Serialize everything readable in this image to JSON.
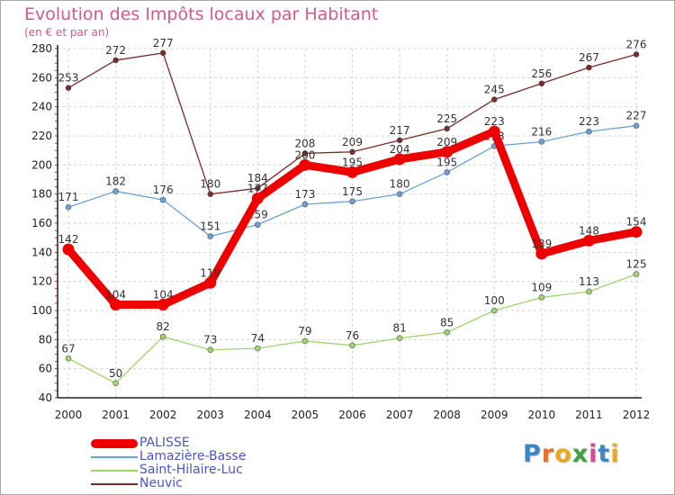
{
  "title": "Evolution des Impôts locaux par Habitant",
  "subtitle": "(en € et par an)",
  "logo": [
    "P",
    "r",
    "o",
    "x",
    "i",
    "t",
    "i"
  ],
  "logo_colors": [
    "#3d86c6",
    "#e8712a",
    "#e8a91e",
    "#3fa342",
    "#d84a8e",
    "#3d86c6",
    "#e8a91e"
  ],
  "chart_data": {
    "type": "line",
    "title": "Evolution des Impôts locaux par Habitant",
    "subtitle": "(en € et par an)",
    "xlabel": "",
    "ylabel": "",
    "x": [
      "2000",
      "2001",
      "2002",
      "2003",
      "2004",
      "2005",
      "2006",
      "2007",
      "2008",
      "2009",
      "2010",
      "2011",
      "2012"
    ],
    "ylim": [
      40,
      280
    ],
    "yticks": [
      40,
      60,
      80,
      100,
      120,
      140,
      160,
      180,
      200,
      220,
      240,
      260,
      280
    ],
    "grid": true,
    "series": [
      {
        "name": "Neuvic",
        "color": "#7a2a2a",
        "values": [
          253,
          272,
          277,
          180,
          184,
          208,
          209,
          217,
          225,
          245,
          256,
          267,
          276
        ],
        "labels": [
          "253",
          "272",
          "277",
          "180",
          "184",
          "208",
          "209",
          "217",
          "225",
          "245",
          "256",
          "267",
          "276"
        ]
      },
      {
        "name": "Lamazière-Basse",
        "color": "#6aa2d8",
        "values": [
          171,
          182,
          176,
          151,
          159,
          173,
          175,
          180,
          195,
          213,
          216,
          223,
          227
        ],
        "labels": [
          "171",
          "182",
          "176",
          "151",
          "159",
          "173",
          "175",
          "180",
          "195",
          "213",
          "216",
          "223",
          "227"
        ]
      },
      {
        "name": "Saint-Hilaire-Luc",
        "color": "#9ed66b",
        "values": [
          67,
          50,
          82,
          73,
          74,
          79,
          76,
          81,
          85,
          100,
          109,
          113,
          125
        ],
        "labels": [
          "67",
          "50",
          "82",
          "73",
          "74",
          "79",
          "76",
          "81",
          "85",
          "100",
          "109",
          "113",
          "125"
        ]
      },
      {
        "name": "PALISSE",
        "color": "#ee0000",
        "values": [
          142,
          104,
          104,
          119,
          177,
          200,
          195,
          204,
          209,
          223,
          139,
          148,
          154
        ],
        "labels": [
          "142",
          "104",
          "104",
          "119",
          "177",
          "200",
          "195",
          "204",
          "209",
          "223",
          "139",
          "148",
          "154"
        ]
      }
    ]
  },
  "legend": [
    {
      "name": "PALISSE",
      "color": "#ee0000",
      "thick": true
    },
    {
      "name": "Lamazière-Basse",
      "color": "#6aa2d8",
      "thick": false
    },
    {
      "name": "Saint-Hilaire-Luc",
      "color": "#9ed66b",
      "thick": false
    },
    {
      "name": "Neuvic",
      "color": "#7a2a2a",
      "thick": false
    }
  ]
}
